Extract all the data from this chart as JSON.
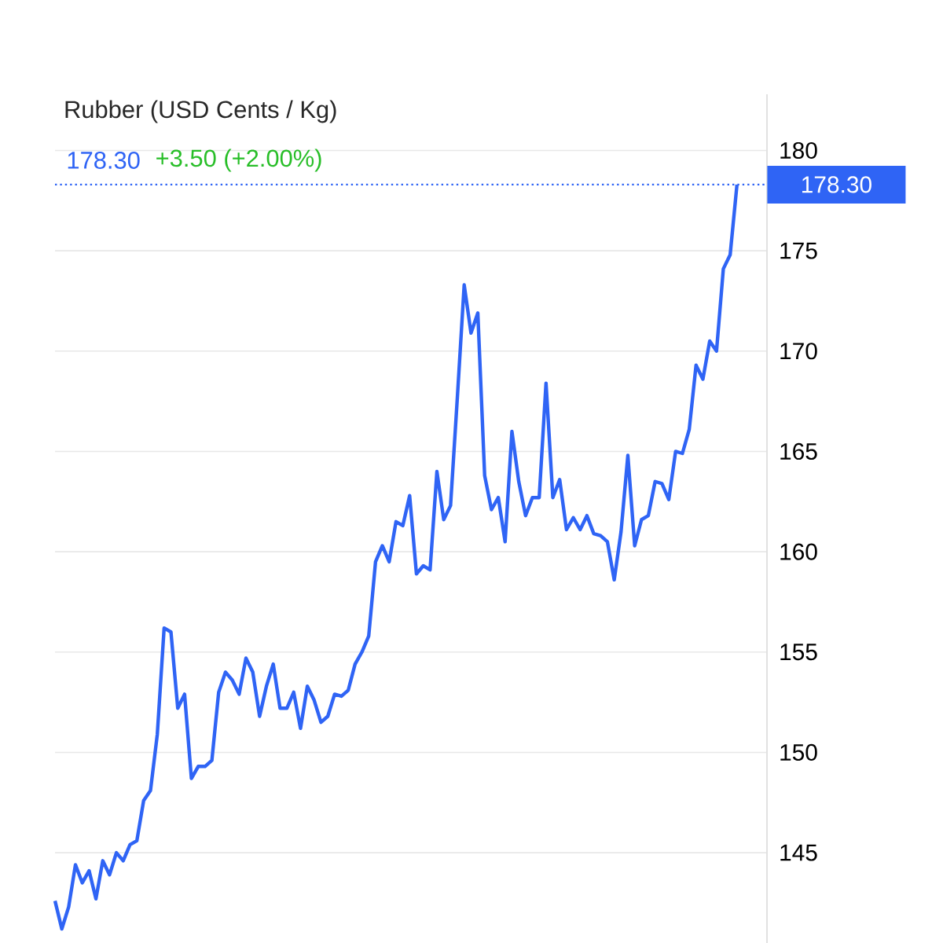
{
  "chart_data": {
    "type": "line",
    "title": "Rubber (USD Cents / Kg)",
    "subtitle": "178.30",
    "annotations": [
      "+3.50 (+2.00%)"
    ],
    "categories": [
      null,
      null,
      null,
      null,
      null,
      null,
      null,
      null,
      null,
      null,
      null,
      null,
      null,
      null,
      null,
      null,
      null,
      null,
      null,
      null,
      null,
      null,
      null,
      null,
      null,
      null,
      null,
      null,
      null,
      null,
      null,
      null,
      null,
      null,
      null,
      null,
      null,
      null,
      null,
      null,
      null,
      null,
      null,
      null,
      null,
      null,
      null,
      null,
      null,
      null,
      null,
      null,
      null,
      null,
      null,
      null,
      null,
      null,
      null,
      null,
      null,
      null,
      null,
      null,
      null,
      null,
      null,
      null,
      null,
      null,
      null,
      null,
      null,
      null,
      null,
      null,
      null,
      null,
      null,
      null,
      null,
      null,
      null,
      null,
      null,
      null,
      null,
      null,
      null,
      null,
      null,
      null,
      null,
      null,
      null,
      null,
      null,
      null,
      null,
      null,
      null
    ],
    "ylim": [
      140.5,
      182.8
    ],
    "yticks": [
      145,
      150,
      155,
      160,
      165,
      170,
      175,
      180
    ],
    "grid": "y",
    "series": [
      {
        "color": "#2f64f5",
        "values": [
          142.6,
          141.2,
          142.3,
          144.4,
          143.5,
          144.1,
          142.7,
          144.6,
          143.9,
          145.0,
          144.6,
          145.4,
          145.6,
          147.6,
          148.1,
          150.9,
          156.2,
          156.0,
          152.2,
          152.9,
          148.7,
          149.3,
          149.3,
          149.6,
          153.0,
          154.0,
          153.6,
          152.9,
          154.7,
          154.0,
          151.8,
          153.3,
          154.4,
          152.2,
          152.2,
          153.0,
          151.2,
          153.3,
          152.6,
          151.5,
          151.8,
          152.9,
          152.8,
          153.1,
          154.4,
          155.0,
          155.8,
          159.5,
          160.3,
          159.5,
          161.5,
          161.3,
          162.8,
          158.9,
          159.3,
          159.1,
          164.0,
          161.6,
          162.3,
          167.7,
          173.3,
          170.9,
          171.9,
          163.8,
          162.1,
          162.7,
          160.5,
          166.0,
          163.5,
          161.8,
          162.7,
          162.7,
          168.4,
          162.7,
          163.6,
          161.1,
          161.7,
          161.1,
          161.8,
          160.9,
          160.8,
          160.5,
          158.6,
          161.0,
          164.8,
          160.3,
          161.6,
          161.8,
          163.5,
          163.4,
          162.6,
          165.0,
          164.9,
          166.1,
          169.3,
          168.6,
          170.5,
          170.0,
          174.1,
          174.8,
          178.3
        ]
      }
    ],
    "ref_lines": [
      {
        "axis": "y",
        "value": 178.3,
        "label": "178.30",
        "color": "#2f64f5",
        "line_style": "dotted"
      }
    ]
  }
}
